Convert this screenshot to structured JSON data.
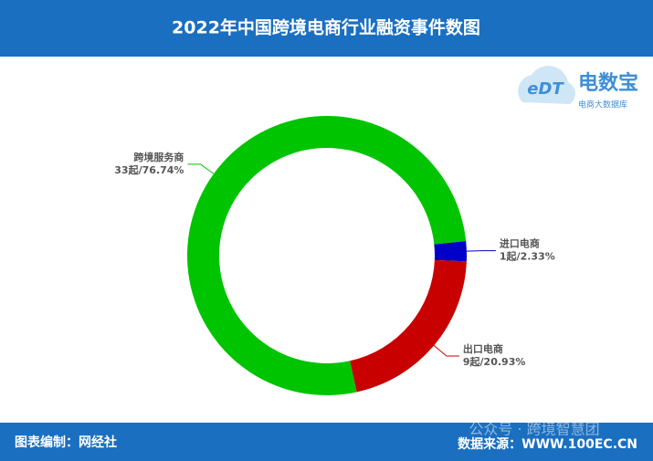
{
  "chart_data": {
    "type": "pie",
    "title": "2022年中国跨境电商行业融资事件数图",
    "categories": [
      "进口电商",
      "出口电商",
      "跨境服务商"
    ],
    "values": [
      1,
      9,
      33
    ],
    "value_labels": [
      "1起/2.33%",
      "9起/20.93%",
      "33起/76.74%"
    ],
    "colors": [
      "#0000c8",
      "#c80000",
      "#00c400"
    ],
    "donut": true
  },
  "footer": {
    "left": "图表编制：网经社",
    "right": "数据来源：WWW.100EC.CN"
  },
  "logo": {
    "mark": "eDT",
    "name": "电数宝",
    "tagline": "电商大数据库"
  },
  "watermark": "公众号 · 跨境智慧团"
}
